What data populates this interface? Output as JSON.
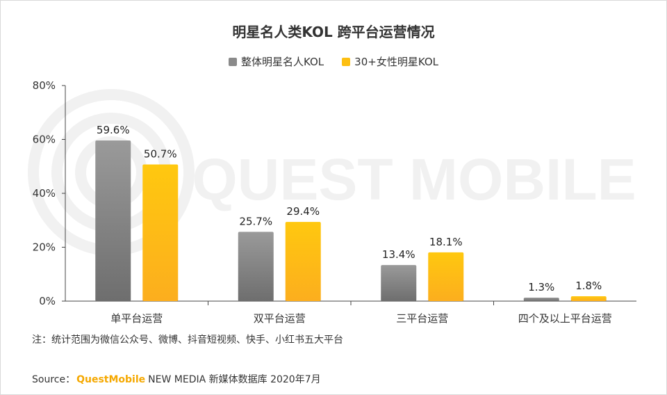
{
  "watermark": "QUEST MOBILE",
  "chart_data": {
    "type": "bar",
    "title": "明星名人类KOL 跨平台运营情况",
    "categories": [
      "单平台运营",
      "双平台运营",
      "三平台运营",
      "四个及以上平台运营"
    ],
    "series": [
      {
        "name": "整体明星名人KOL",
        "values": [
          59.6,
          25.7,
          13.4,
          1.3
        ],
        "labels": [
          "59.6%",
          "25.7%",
          "13.4%",
          "1.3%"
        ],
        "color": "#8a8a8a"
      },
      {
        "name": "30+女性明星KOL",
        "values": [
          50.7,
          29.4,
          18.1,
          1.8
        ],
        "labels": [
          "50.7%",
          "29.4%",
          "18.1%",
          "1.8%"
        ],
        "color": "#fdbf12"
      }
    ],
    "ylim": [
      0,
      80
    ],
    "yticks": [
      0,
      20,
      40,
      60,
      80
    ],
    "ytick_labels": [
      "0%",
      "20%",
      "40%",
      "60%",
      "80%"
    ],
    "xlabel": "",
    "ylabel": "",
    "legend": "top-center",
    "grid": false
  },
  "note": "注：统计范围为微信公众号、微博、抖音短视频、快手、小红书五大平台",
  "source": {
    "label": "Source：",
    "brand": "QuestMobile",
    "rest": "NEW MEDIA 新媒体数据库 2020年7月"
  }
}
